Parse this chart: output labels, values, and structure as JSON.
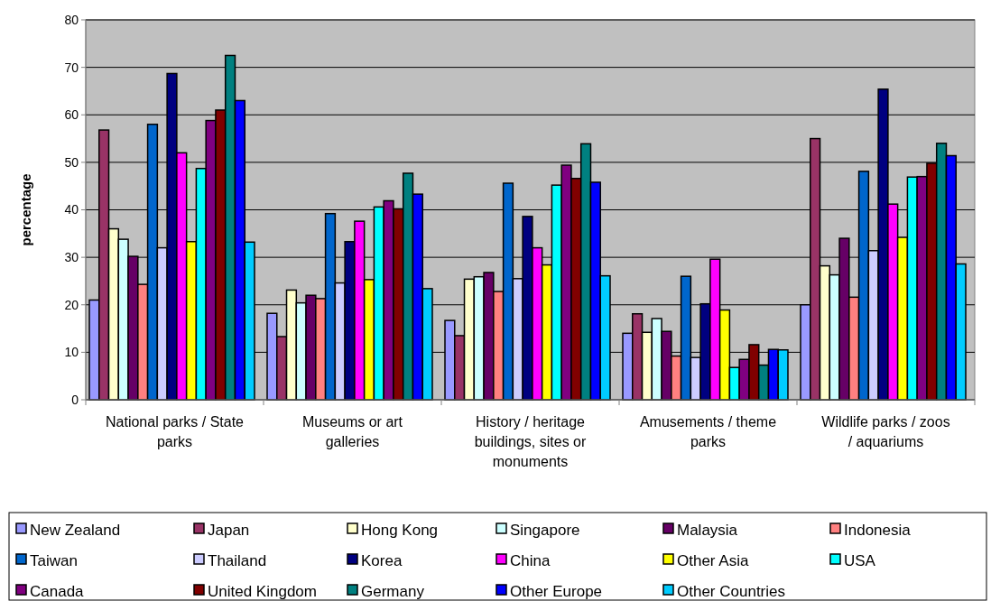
{
  "chart_data": {
    "type": "bar",
    "ylabel": "percentage",
    "categories": [
      "National parks / State parks",
      "Museums or art galleries",
      "History / heritage buildings, sites or monuments",
      "Amusements / theme parks",
      "Wildlife parks / zoos / aquariums"
    ],
    "ylim": [
      0,
      80
    ],
    "yticks": [
      0,
      10,
      20,
      30,
      40,
      50,
      60,
      70,
      80
    ],
    "grid": "y",
    "legend": "bottom",
    "series": [
      {
        "name": "New Zealand",
        "color": "#9999ff",
        "values": [
          21,
          18.2,
          16.7,
          14,
          20
        ]
      },
      {
        "name": "Japan",
        "color": "#993366",
        "values": [
          56.8,
          13.3,
          13.5,
          18.1,
          55
        ]
      },
      {
        "name": "Hong Kong",
        "color": "#ffffcc",
        "values": [
          36,
          23.1,
          25.4,
          14.2,
          28.2
        ]
      },
      {
        "name": "Singapore",
        "color": "#ccffff",
        "values": [
          33.8,
          20.4,
          25.9,
          17.1,
          26.3
        ]
      },
      {
        "name": "Malaysia",
        "color": "#660066",
        "values": [
          30.2,
          22,
          26.8,
          14.4,
          34
        ]
      },
      {
        "name": "Indonesia",
        "color": "#ff8080",
        "values": [
          24.3,
          21.3,
          22.8,
          9.2,
          21.6
        ]
      },
      {
        "name": "Taiwan",
        "color": "#0066cc",
        "values": [
          58,
          39.2,
          45.6,
          26,
          48.1
        ]
      },
      {
        "name": "Thailand",
        "color": "#ccccff",
        "values": [
          32,
          24.6,
          25.5,
          8.9,
          31.4
        ]
      },
      {
        "name": "Korea",
        "color": "#000080",
        "values": [
          68.7,
          33.3,
          38.6,
          20.2,
          65.4
        ]
      },
      {
        "name": "China",
        "color": "#ff00ff",
        "values": [
          52,
          37.6,
          32,
          29.6,
          41.2
        ]
      },
      {
        "name": "Other Asia",
        "color": "#ffff00",
        "values": [
          33.3,
          25.3,
          28.4,
          18.9,
          34.2
        ]
      },
      {
        "name": "USA",
        "color": "#00ffff",
        "values": [
          48.7,
          40.6,
          45.2,
          6.8,
          46.9
        ]
      },
      {
        "name": "Canada",
        "color": "#800080",
        "values": [
          58.8,
          41.9,
          49.4,
          8.5,
          47
        ]
      },
      {
        "name": "United Kingdom",
        "color": "#800000",
        "values": [
          61,
          40.2,
          46.6,
          11.6,
          49.8
        ]
      },
      {
        "name": "Germany",
        "color": "#008080",
        "values": [
          72.5,
          47.7,
          53.9,
          7.3,
          54
        ]
      },
      {
        "name": "Other Europe",
        "color": "#0000ff",
        "values": [
          63,
          43.3,
          45.8,
          10.6,
          51.4
        ]
      },
      {
        "name": "Other Countries",
        "color": "#00ccff",
        "values": [
          33.2,
          23.4,
          26.1,
          10.5,
          28.6
        ]
      }
    ]
  }
}
